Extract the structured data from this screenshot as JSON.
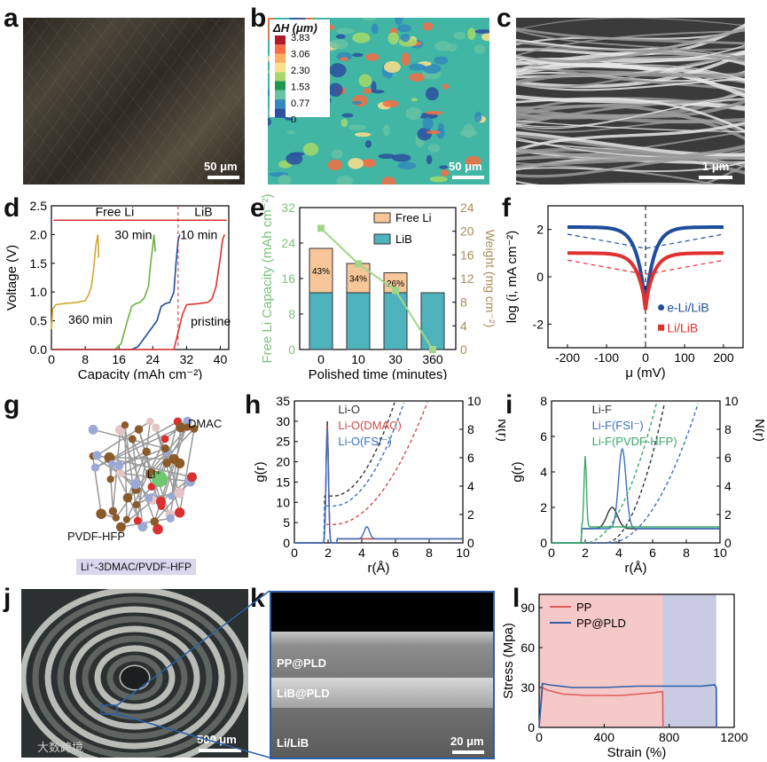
{
  "panels": {
    "a": {
      "letter": "a",
      "scale_bar": "50 μm"
    },
    "b": {
      "letter": "b",
      "scale_bar": "50 μm",
      "legend_title": "ΔH (μm)",
      "legend_ticks": [
        "3.83",
        "3.06",
        "2.30",
        "1.53",
        "0.77",
        "0"
      ],
      "legend_colors": [
        "#b2182b",
        "#f46d43",
        "#fdae61",
        "#fee08b",
        "#a6d96a",
        "#1a9850",
        "#66c2a5",
        "#3288bd",
        "#2c4fa0"
      ]
    },
    "c": {
      "letter": "c",
      "scale_bar": "1 μm"
    },
    "d": {
      "letter": "d",
      "ylabel": "Voltage (V)",
      "xlabel": "Capacity (mAh cm⁻²)",
      "yticks": [
        "0.0",
        "0.5",
        "1.0",
        "1.5",
        "2.0",
        "2.5"
      ],
      "xticks": [
        "0",
        "8",
        "16",
        "24",
        "32",
        "40"
      ],
      "region_free": "Free Li",
      "region_lib": "LiB",
      "labels": [
        "360 min",
        "30 min",
        "10 min",
        "pristine"
      ]
    },
    "e": {
      "letter": "e",
      "ylabel_left": "Free Li Capacity (mAh cm⁻²)",
      "ylabel_right": "Weight (mg cm⁻²)",
      "xlabel": "Polished time (minutes)",
      "yticks_left": [
        "0",
        "8",
        "16",
        "24",
        "32"
      ],
      "yticks_right": [
        "0",
        "4",
        "8",
        "12",
        "16",
        "20",
        "24"
      ],
      "legend": [
        "Free Li",
        "LiB"
      ],
      "percent_labels": [
        "43%",
        "34%",
        "26%"
      ]
    },
    "f": {
      "letter": "f",
      "ylabel": "log (i, mA cm⁻²)",
      "xlabel": "μ (mV)",
      "yticks": [
        "-2",
        "0",
        "2"
      ],
      "xticks": [
        "-200",
        "-100",
        "0",
        "100",
        "200"
      ],
      "legend": [
        "e-Li/LiB",
        "Li/LiB"
      ]
    },
    "g": {
      "letter": "g",
      "labels": [
        "DMAC",
        "Li⁺",
        "PVDF-HFP"
      ],
      "caption": "Li⁺-3DMAC/PVDF-HFP"
    },
    "h": {
      "letter": "h",
      "ylabel_left": "g(r)",
      "ylabel_right": "N(r)",
      "xlabel": "r(Å)",
      "yticks_left": [
        "0",
        "5",
        "10",
        "15",
        "20",
        "25",
        "30",
        "35"
      ],
      "yticks_right": [
        "0",
        "2",
        "4",
        "6",
        "8",
        "10"
      ],
      "xticks": [
        "0",
        "2",
        "4",
        "6",
        "8",
        "10"
      ],
      "legend": [
        "Li-O",
        "Li-O(DMAC)",
        "Li-O(FSI⁻)"
      ]
    },
    "i": {
      "letter": "i",
      "ylabel_left": "g(r)",
      "ylabel_right": "N(r)",
      "xlabel": "r(Å)",
      "yticks_left": [
        "0",
        "2",
        "4",
        "6",
        "8"
      ],
      "yticks_right": [
        "0",
        "2",
        "4",
        "6",
        "8",
        "10"
      ],
      "xticks": [
        "0",
        "2",
        "4",
        "6",
        "8",
        "10"
      ],
      "legend": [
        "Li-F",
        "Li-F(FSI⁻)",
        "Li-F(PVDF-HFP)"
      ]
    },
    "j": {
      "letter": "j",
      "scale_bar": "500 μm",
      "watermark": "大数跨境"
    },
    "k": {
      "letter": "k",
      "scale_bar": "20 μm",
      "layers": [
        "PP@PLD",
        "LiB@PLD",
        "Li/LiB"
      ]
    },
    "l": {
      "letter": "l",
      "ylabel": "Stress (Mpa)",
      "xlabel": "Strain (%)",
      "yticks": [
        "0",
        "30",
        "60",
        "90"
      ],
      "xticks": [
        "0",
        "400",
        "800",
        "1200"
      ],
      "legend": [
        "PP",
        "PP@PLD"
      ]
    }
  },
  "chart_data": [
    {
      "panel": "d",
      "type": "line",
      "xlim": [
        0,
        42
      ],
      "ylim": [
        0,
        2.5
      ],
      "series": [
        {
          "name": "360 min",
          "color": "#d4a72c",
          "x": [
            0,
            0.3,
            1,
            3,
            6,
            8,
            8.8,
            9.5,
            10,
            10.5,
            11,
            11.2
          ],
          "y": [
            0.35,
            0.7,
            0.78,
            0.8,
            0.82,
            0.85,
            0.95,
            1.1,
            1.4,
            1.8,
            2.0,
            1.6
          ]
        },
        {
          "name": "30 min",
          "color": "#6cb33f",
          "x": [
            0,
            15,
            16.5,
            18,
            19,
            20,
            21,
            22,
            23,
            23.5,
            24,
            24.3,
            24.6
          ],
          "y": [
            0,
            0,
            0.1,
            0.5,
            0.75,
            0.8,
            0.82,
            0.9,
            1.1,
            1.5,
            1.8,
            2.0,
            1.7
          ]
        },
        {
          "name": "10 min",
          "color": "#1e4d9b",
          "x": [
            0,
            19,
            20.5,
            22,
            24,
            25,
            26,
            27,
            28,
            29,
            29.5,
            30,
            30.4
          ],
          "y": [
            0,
            0,
            0.05,
            0.2,
            0.4,
            0.5,
            0.75,
            0.8,
            0.82,
            1.0,
            1.5,
            1.9,
            2.0
          ]
        },
        {
          "name": "pristine",
          "color": "#e03030",
          "x": [
            0,
            29,
            30,
            31,
            32,
            35,
            37,
            38,
            39,
            40,
            40.5,
            41
          ],
          "y": [
            0,
            0,
            0.3,
            0.6,
            0.78,
            0.8,
            0.82,
            0.88,
            1.1,
            1.6,
            1.9,
            2.0
          ]
        }
      ]
    },
    {
      "panel": "e",
      "type": "bar",
      "categories": [
        "0",
        "10",
        "30",
        "360"
      ],
      "series": [
        {
          "name": "LiB",
          "values": [
            12.8,
            12.8,
            12.8,
            12.8
          ],
          "color": "#4fb3bd"
        },
        {
          "name": "Free Li",
          "values": [
            10,
            6.6,
            4.5,
            0
          ],
          "color": "#f7c79a"
        },
        {
          "name": "Weight",
          "values": [
            20.5,
            14.5,
            10,
            0
          ],
          "color": "#9fd68a",
          "axis": "right"
        }
      ],
      "ylim_left": [
        0,
        32
      ],
      "ylim_right": [
        0,
        24
      ]
    },
    {
      "panel": "f",
      "type": "line",
      "xlim": [
        -250,
        250
      ],
      "ylim": [
        -3,
        3
      ],
      "series": [
        {
          "name": "e-Li/LiB",
          "color": "#1e4d9b"
        },
        {
          "name": "Li/LiB",
          "color": "#e03030"
        }
      ]
    },
    {
      "panel": "h",
      "type": "line",
      "xlim": [
        0,
        10
      ],
      "ylim": [
        0,
        35
      ],
      "y2lim": [
        0,
        10
      ],
      "series": [
        {
          "name": "Li-O",
          "color": "#333333",
          "peak": 30
        },
        {
          "name": "Li-O(DMAC)",
          "color": "#d24a4a",
          "peak": 29
        },
        {
          "name": "Li-O(FSI⁻)",
          "color": "#3a6fc1",
          "peak": 28
        }
      ]
    },
    {
      "panel": "i",
      "type": "line",
      "xlim": [
        0,
        10
      ],
      "ylim": [
        0,
        8
      ],
      "y2lim": [
        0,
        10
      ],
      "series": [
        {
          "name": "Li-F",
          "color": "#333333"
        },
        {
          "name": "Li-F(FSI⁻)",
          "color": "#3a6fc1"
        },
        {
          "name": "Li-F(PVDF-HFP)",
          "color": "#3aa86a"
        }
      ]
    },
    {
      "panel": "l",
      "type": "line",
      "xlim": [
        0,
        1200
      ],
      "ylim": [
        0,
        100
      ],
      "series": [
        {
          "name": "PP",
          "color": "#e05a5a",
          "x": [
            0,
            20,
            50,
            150,
            300,
            500,
            700,
            760,
            762
          ],
          "y": [
            0,
            30,
            28,
            25,
            24,
            24,
            26,
            27,
            0
          ]
        },
        {
          "name": "PP@PLD",
          "color": "#2c5ea8",
          "x": [
            0,
            20,
            60,
            200,
            400,
            600,
            800,
            1000,
            1080,
            1090,
            1092
          ],
          "y": [
            0,
            33,
            32,
            30,
            30,
            31,
            31,
            31,
            32,
            30,
            0
          ]
        }
      ]
    }
  ]
}
